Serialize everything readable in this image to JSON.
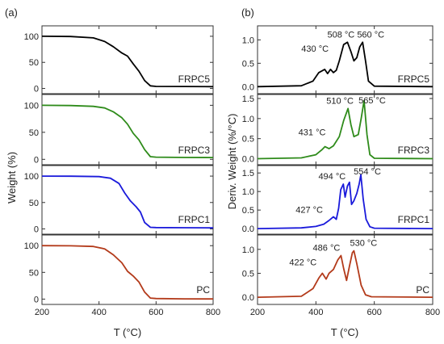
{
  "panels": {
    "a_label": "(a)",
    "b_label": "(b)",
    "a_ylabel": "Weight (%)",
    "b_ylabel": "Deriv. Weight (%/°C)",
    "a_xlabel": "T (°C)",
    "b_xlabel": "T (°C)"
  },
  "chart_data": [
    {
      "panel": "a",
      "type": "line",
      "xlabel": "T (°C)",
      "ylabel": "Weight (%)",
      "xlim": [
        200,
        800
      ],
      "xticks": [
        200,
        400,
        600,
        800
      ],
      "grid": false,
      "subplots": [
        {
          "name": "FRPC5",
          "color": "#000000",
          "ylim": [
            -10,
            120
          ],
          "yticks": [
            0,
            50,
            100
          ],
          "x": [
            200,
            300,
            380,
            420,
            450,
            480,
            500,
            520,
            540,
            560,
            580,
            600,
            700,
            800
          ],
          "y": [
            100,
            99.5,
            97,
            90,
            80,
            68,
            62,
            47,
            33,
            15,
            5,
            4,
            3.8,
            3.5
          ]
        },
        {
          "name": "FRPC3",
          "color": "#2e8b1a",
          "ylim": [
            -10,
            120
          ],
          "yticks": [
            0,
            50,
            100
          ],
          "x": [
            200,
            300,
            380,
            420,
            450,
            480,
            500,
            520,
            540,
            560,
            580,
            600,
            700,
            800
          ],
          "y": [
            100,
            99.5,
            98,
            95,
            88,
            77,
            65,
            48,
            36,
            18,
            5,
            4,
            3.5,
            3.3
          ]
        },
        {
          "name": "FRPC1",
          "color": "#1a1adb",
          "ylim": [
            -10,
            120
          ],
          "yticks": [
            0,
            50,
            100
          ],
          "x": [
            200,
            300,
            400,
            440,
            470,
            490,
            510,
            530,
            545,
            560,
            580,
            600,
            700,
            800
          ],
          "y": [
            100,
            99.8,
            99,
            96,
            86,
            68,
            53,
            42,
            32,
            12,
            3,
            2.5,
            2.3,
            2
          ]
        },
        {
          "name": "PC",
          "color": "#b33a1a",
          "ylim": [
            -10,
            120
          ],
          "yticks": [
            0,
            50,
            100
          ],
          "x": [
            200,
            300,
            380,
            420,
            450,
            480,
            500,
            520,
            540,
            560,
            580,
            600,
            700,
            800
          ],
          "y": [
            100,
            99.8,
            98.5,
            94,
            83,
            68,
            52,
            43,
            32,
            13,
            2,
            1,
            0.5,
            0.3
          ]
        }
      ]
    },
    {
      "panel": "b",
      "type": "line",
      "xlabel": "T (°C)",
      "ylabel": "Deriv. Weight (%/°C)",
      "xlim": [
        200,
        800
      ],
      "xticks": [
        200,
        400,
        600,
        800
      ],
      "grid": false,
      "subplots": [
        {
          "name": "FRPC5",
          "color": "#000000",
          "ylim": [
            -0.15,
            1.3
          ],
          "yticks": [
            0.0,
            0.5,
            1.0
          ],
          "x": [
            200,
            350,
            390,
            410,
            430,
            440,
            450,
            460,
            470,
            480,
            495,
            508,
            520,
            530,
            540,
            550,
            560,
            570,
            580,
            600,
            800
          ],
          "y": [
            0,
            0.02,
            0.12,
            0.3,
            0.37,
            0.28,
            0.37,
            0.3,
            0.35,
            0.55,
            0.9,
            0.95,
            0.75,
            0.55,
            0.62,
            0.85,
            0.95,
            0.55,
            0.12,
            0.01,
            0
          ],
          "peak_labels": [
            {
              "x": 430,
              "text": "430 °C"
            },
            {
              "x": 508,
              "text": "508 °C"
            },
            {
              "x": 560,
              "text": "560 °C"
            }
          ]
        },
        {
          "name": "FRPC3",
          "color": "#2e8b1a",
          "ylim": [
            -0.15,
            1.6
          ],
          "yticks": [
            0.0,
            0.5,
            1.0,
            1.5
          ],
          "x": [
            200,
            350,
            400,
            420,
            431,
            445,
            460,
            480,
            495,
            510,
            520,
            530,
            545,
            555,
            565,
            575,
            585,
            600,
            800
          ],
          "y": [
            0,
            0.02,
            0.1,
            0.22,
            0.3,
            0.25,
            0.32,
            0.55,
            0.95,
            1.25,
            0.85,
            0.55,
            0.6,
            1.0,
            1.45,
            0.6,
            0.1,
            0.01,
            0
          ],
          "peak_labels": [
            {
              "x": 431,
              "text": "431 °C"
            },
            {
              "x": 510,
              "text": "510 °C"
            },
            {
              "x": 565,
              "text": "565 °C"
            }
          ]
        },
        {
          "name": "FRPC1",
          "color": "#1a1adb",
          "ylim": [
            -0.15,
            1.7
          ],
          "yticks": [
            0.0,
            0.5,
            1.0,
            1.5
          ],
          "x": [
            200,
            350,
            400,
            427,
            445,
            460,
            470,
            478,
            485,
            494,
            500,
            508,
            515,
            522,
            530,
            540,
            548,
            554,
            562,
            572,
            585,
            600,
            800
          ],
          "y": [
            0,
            0.02,
            0.06,
            0.12,
            0.22,
            0.32,
            0.25,
            0.55,
            1.05,
            1.2,
            0.85,
            1.15,
            1.25,
            0.65,
            0.75,
            0.95,
            1.2,
            1.45,
            0.8,
            0.25,
            0.05,
            0.01,
            0
          ],
          "peak_labels": [
            {
              "x": 427,
              "text": "427 °C"
            },
            {
              "x": 494,
              "text": "494 °C"
            },
            {
              "x": 554,
              "text": "554 °C"
            }
          ]
        },
        {
          "name": "PC",
          "color": "#b33a1a",
          "ylim": [
            -0.15,
            1.3
          ],
          "yticks": [
            0.0,
            0.5,
            1.0
          ],
          "x": [
            200,
            350,
            390,
            410,
            422,
            435,
            445,
            460,
            475,
            486,
            495,
            505,
            515,
            525,
            530,
            540,
            555,
            570,
            590,
            800
          ],
          "y": [
            0,
            0.02,
            0.18,
            0.4,
            0.5,
            0.38,
            0.5,
            0.58,
            0.78,
            0.87,
            0.6,
            0.35,
            0.65,
            0.93,
            0.97,
            0.7,
            0.25,
            0.05,
            0.01,
            0
          ],
          "peak_labels": [
            {
              "x": 422,
              "text": "422 °C"
            },
            {
              "x": 486,
              "text": "486 °C"
            },
            {
              "x": 530,
              "text": "530 °C"
            }
          ]
        }
      ]
    }
  ]
}
